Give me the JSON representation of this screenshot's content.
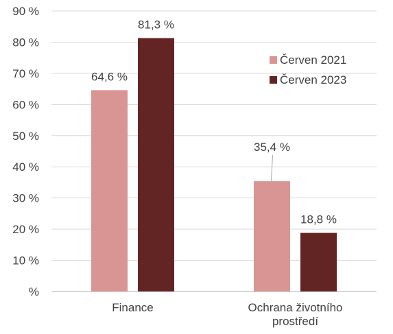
{
  "chart_data": {
    "type": "bar",
    "title": "",
    "xlabel": "",
    "ylabel": "",
    "categories": [
      "Finance",
      "Ochrana životního prostředí"
    ],
    "series": [
      {
        "name": "Červen 2021",
        "color": "#D99594",
        "values": [
          64.6,
          35.4
        ],
        "labels": [
          "64,6 %",
          "35,4 %"
        ]
      },
      {
        "name": "Červen 2023",
        "color": "#632523",
        "values": [
          81.3,
          18.8
        ],
        "labels": [
          "81,3 %",
          "18,8 %"
        ]
      }
    ],
    "ylim": [
      0,
      90
    ],
    "yticks": [
      0,
      10,
      20,
      30,
      40,
      50,
      60,
      70,
      80,
      90
    ],
    "ytick_labels": [
      "%",
      "10 %",
      "20 %",
      "30 %",
      "40 %",
      "50 %",
      "60 %",
      "70 %",
      "80 %",
      "90 %"
    ],
    "grid": true,
    "legend_position": "right"
  }
}
